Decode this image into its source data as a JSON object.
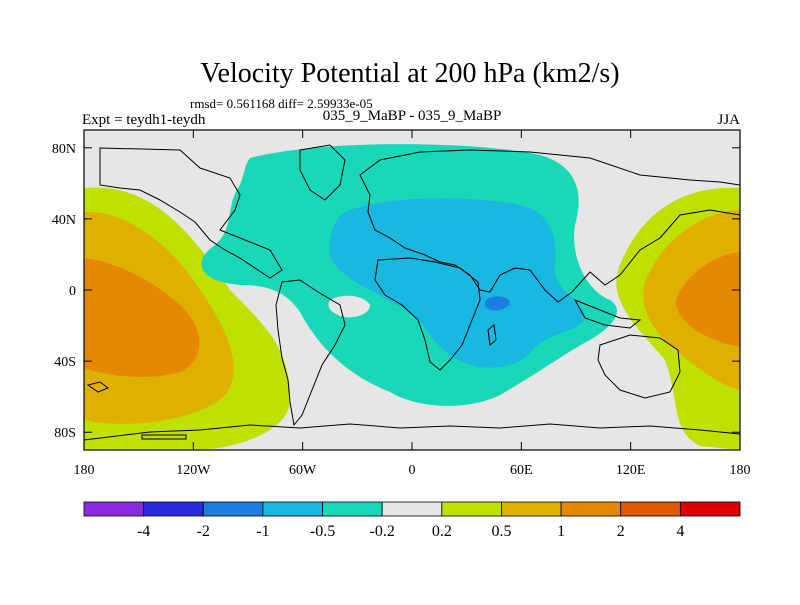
{
  "chart_data": {
    "type": "contour-map",
    "title": "Velocity Potential at 200 hPa (km2/s)",
    "stats_text": "rmsd= 0.561168 diff= 2.59933e-05",
    "left_label": "Expt = teydh1-teydh",
    "center_label": "035_9_MaBP - 035_9_MaBP",
    "right_label": "JJA",
    "x_ticks": [
      {
        "lon": -180,
        "label": "180"
      },
      {
        "lon": -120,
        "label": "120W"
      },
      {
        "lon": -60,
        "label": "60W"
      },
      {
        "lon": 0,
        "label": "0"
      },
      {
        "lon": 60,
        "label": "60E"
      },
      {
        "lon": 120,
        "label": "120E"
      },
      {
        "lon": 180,
        "label": "180"
      }
    ],
    "y_ticks": [
      {
        "lat": 80,
        "label": "80N"
      },
      {
        "lat": 40,
        "label": "40N"
      },
      {
        "lat": 0,
        "label": "0"
      },
      {
        "lat": -40,
        "label": "40S"
      },
      {
        "lat": -80,
        "label": "80S"
      }
    ],
    "xlim": [
      -180,
      180
    ],
    "ylim": [
      -90,
      90
    ],
    "colorbar": {
      "colors": [
        "#8a2be2",
        "#2a2ae0",
        "#1a7fe0",
        "#19b8e0",
        "#19d8b8",
        "#e6e6e6",
        "#bfe000",
        "#e0b000",
        "#e58a00",
        "#e05a00",
        "#e00000"
      ],
      "labels": [
        "-4",
        "-2",
        "-1",
        "-0.5",
        "-0.2",
        "0.2",
        "0.5",
        "1",
        "2",
        "4"
      ]
    }
  }
}
